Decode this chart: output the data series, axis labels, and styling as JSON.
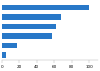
{
  "values": [
    100,
    68,
    62,
    57,
    17,
    5
  ],
  "bar_color": "#2878c8",
  "background_color": "#ffffff",
  "xlim": [
    0,
    110
  ],
  "bar_height": 0.55,
  "n_bars": 6
}
